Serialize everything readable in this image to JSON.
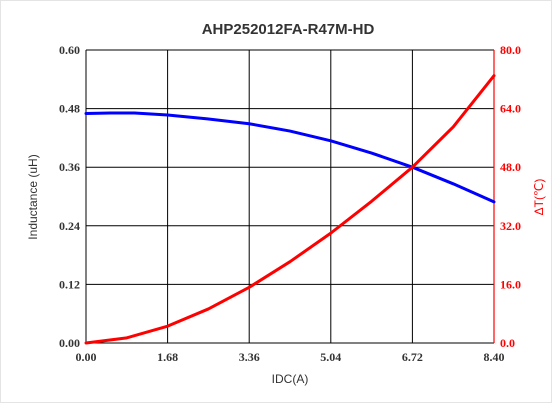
{
  "chart_data": {
    "type": "line",
    "title": "AHP252012FA-R47M-HD",
    "xlabel": "IDC(A)",
    "ylabel": "Inductance (uH)",
    "y2label": "ΔT(℃)",
    "xlim": [
      0,
      8.4
    ],
    "ylim": [
      0,
      0.6
    ],
    "y2lim": [
      0,
      80
    ],
    "grid": true,
    "x_ticks": [
      "0.00",
      "1.68",
      "3.36",
      "5.04",
      "6.72",
      "8.40"
    ],
    "y_ticks": [
      "0.00",
      "0.12",
      "0.24",
      "0.36",
      "0.48",
      "0.60"
    ],
    "y2_ticks": [
      "0.0",
      "16.0",
      "32.0",
      "48.0",
      "64.0",
      "80.0"
    ],
    "series": [
      {
        "axis": "left",
        "color": "#0000ff",
        "x": [
          0,
          0.5,
          1.0,
          1.68,
          2.5,
          3.36,
          4.2,
          5.04,
          5.88,
          6.72,
          7.56,
          8.4
        ],
        "y": [
          0.47,
          0.471,
          0.471,
          0.467,
          0.459,
          0.449,
          0.434,
          0.414,
          0.389,
          0.36,
          0.326,
          0.289
        ]
      },
      {
        "axis": "right",
        "color": "#ff0000",
        "x": [
          0,
          0.84,
          1.68,
          2.52,
          3.36,
          4.2,
          5.04,
          5.88,
          6.72,
          7.56,
          8.4
        ],
        "y": [
          0,
          1.4,
          4.6,
          9.3,
          15.2,
          22.2,
          30.0,
          38.7,
          48.0,
          59.0,
          73.0
        ]
      }
    ]
  }
}
